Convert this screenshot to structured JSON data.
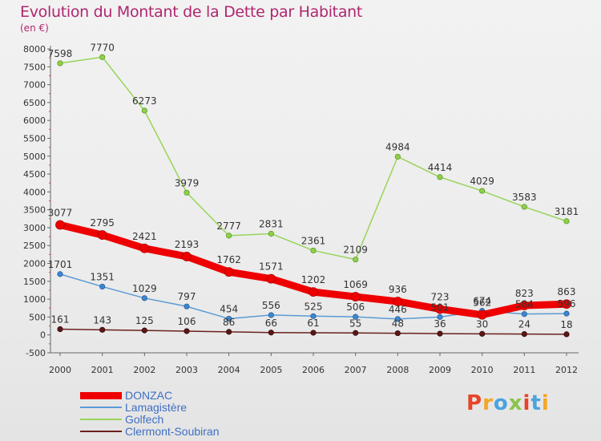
{
  "header": {
    "title": "Evolution du Montant de la Dette par Habitant",
    "unit": "(en €)"
  },
  "colors": {
    "title": "#b0266f",
    "legend_text": "#3f6fc4",
    "DONZAC": "#ee0000",
    "Lamagistère": "#5b9bd5",
    "Golfech": "#99d45a",
    "Clermont-Soubiran": "#6b2020"
  },
  "logo": {
    "text": "Proxiti"
  },
  "chart_data": {
    "type": "line",
    "x": [
      "2000",
      "2001",
      "2002",
      "2003",
      "2004",
      "2005",
      "2006",
      "2007",
      "2008",
      "2009",
      "2010",
      "2011",
      "2012"
    ],
    "ylim": [
      -500,
      8000
    ],
    "yticks": [
      -500,
      0,
      500,
      1000,
      1500,
      2000,
      2500,
      3000,
      3500,
      4000,
      4500,
      5000,
      5500,
      6000,
      6500,
      7000,
      7500,
      8000
    ],
    "grid": false,
    "legend_position": "bottom-left",
    "series": [
      {
        "name": "DONZAC",
        "values": [
          3077,
          2795,
          2421,
          2193,
          1762,
          1571,
          1202,
          1069,
          936,
          723,
          562,
          823,
          863
        ]
      },
      {
        "name": "Lamagistère",
        "values": [
          1701,
          1351,
          1029,
          797,
          454,
          556,
          525,
          506,
          446,
          501,
          674,
          584,
          596
        ]
      },
      {
        "name": "Golfech",
        "values": [
          7598,
          7770,
          6273,
          3979,
          2777,
          2831,
          2361,
          2109,
          4984,
          4414,
          4029,
          3583,
          3181
        ]
      },
      {
        "name": "Clermont-Soubiran",
        "values": [
          161,
          143,
          125,
          106,
          86,
          66,
          61,
          55,
          48,
          36,
          30,
          24,
          18
        ]
      }
    ]
  }
}
